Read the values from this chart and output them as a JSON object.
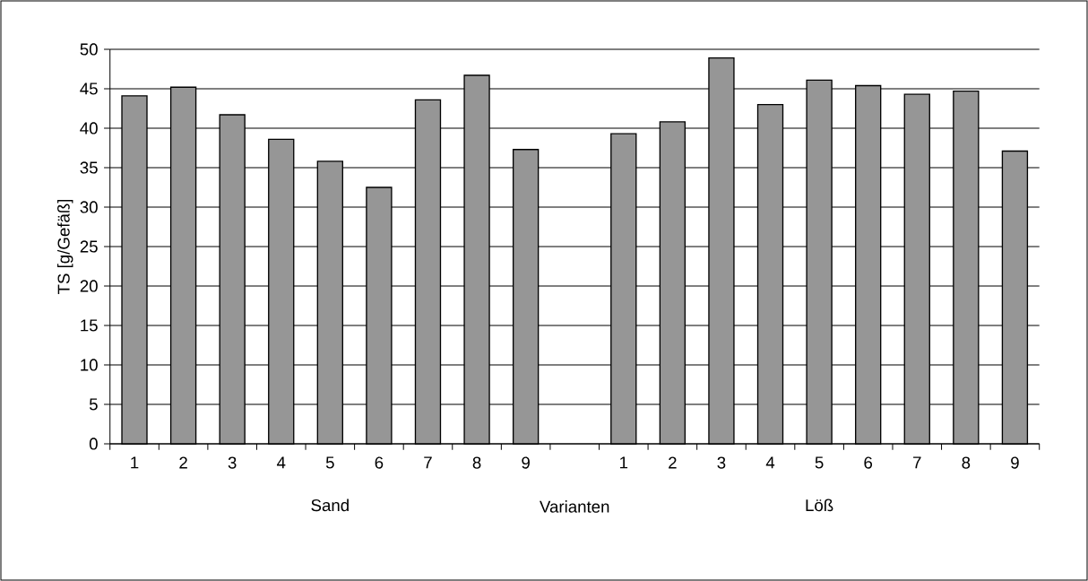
{
  "chart_data": {
    "type": "bar",
    "ylabel": "TS [g/Gefäß]",
    "xlabel": "Varianten",
    "annotations": [
      "Sand",
      "Löß"
    ],
    "categories": [
      "1",
      "2",
      "3",
      "4",
      "5",
      "6",
      "7",
      "8",
      "9",
      null,
      "1",
      "2",
      "3",
      "4",
      "5",
      "6",
      "7",
      "8",
      "9"
    ],
    "values": [
      44.1,
      45.2,
      41.7,
      38.6,
      35.8,
      32.5,
      43.6,
      46.7,
      37.3,
      null,
      39.3,
      40.8,
      48.9,
      43.0,
      46.1,
      45.4,
      44.3,
      44.7,
      37.1
    ],
    "color": "#969696",
    "ylim": [
      0,
      50
    ],
    "yticks": [
      0,
      5,
      10,
      15,
      20,
      25,
      30,
      35,
      40,
      45,
      50
    ],
    "grid": "y"
  }
}
